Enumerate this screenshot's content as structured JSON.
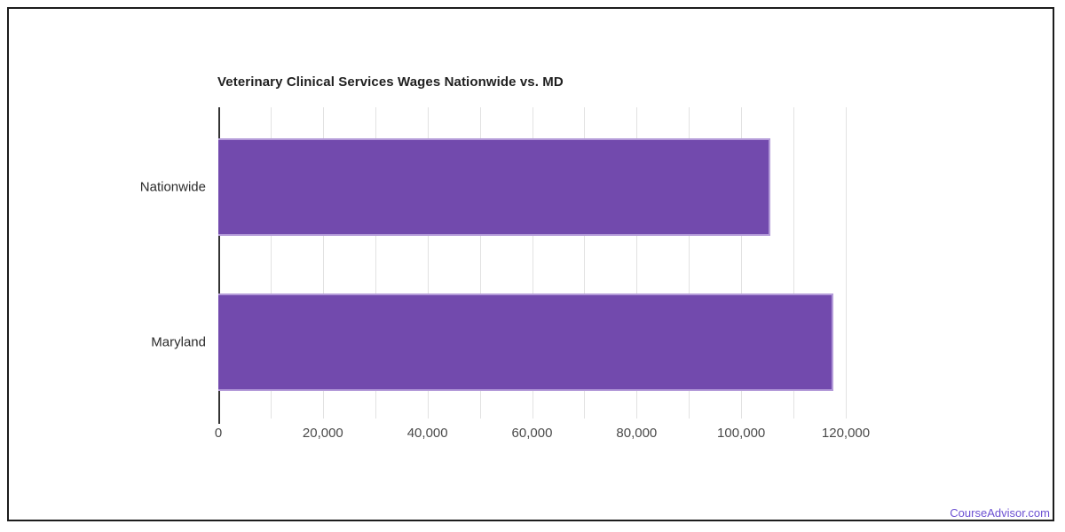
{
  "page": {
    "background_color": "#ffffff",
    "frame_border_color": "#1c1c1c"
  },
  "chart_data": {
    "type": "bar",
    "orientation": "horizontal",
    "title": "Veterinary Clinical Services Wages Nationwide vs. MD",
    "categories": [
      "Nationwide",
      "Maryland"
    ],
    "values": [
      105230,
      117290
    ],
    "xlabel": "",
    "ylabel": "",
    "xlim": [
      0,
      120000
    ],
    "x_major_ticks": [
      {
        "value": 0,
        "label": "0"
      },
      {
        "value": 20000,
        "label": "20,000"
      },
      {
        "value": 40000,
        "label": "40,000"
      },
      {
        "value": 60000,
        "label": "60,000"
      },
      {
        "value": 80000,
        "label": "80,000"
      },
      {
        "value": 100000,
        "label": "100,000"
      },
      {
        "value": 120000,
        "label": "120,000"
      }
    ],
    "x_minor_gridline_step": 10000,
    "grid": "vertical-on",
    "legend": "none",
    "bar_color": "#724aad",
    "bar_border_color": "#b49bd9",
    "gridline_color": "#e2e2e2",
    "axis_line_color": "#333333",
    "title_color": "#1f1f1f",
    "category_label_color": "#2a2a2a",
    "tick_label_color": "#4a4a4a"
  },
  "footer": {
    "watermark": "CourseAdvisor.com",
    "watermark_color": "#6c51d2"
  }
}
